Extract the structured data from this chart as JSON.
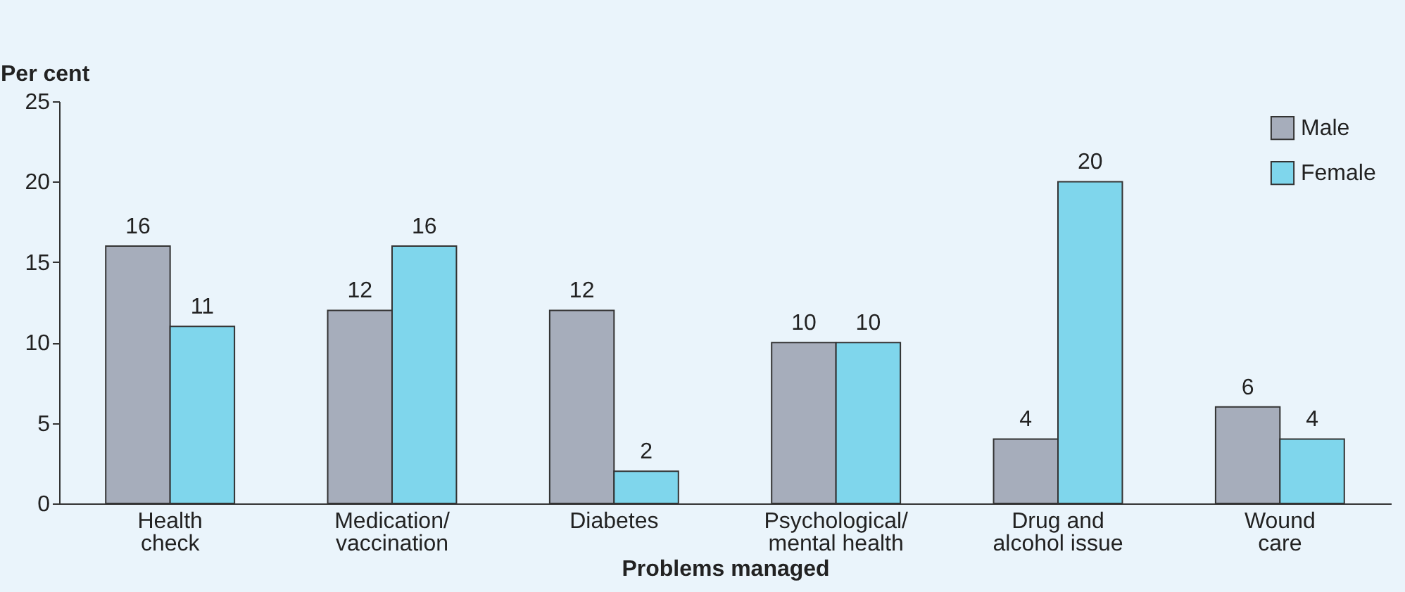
{
  "chart_data": {
    "type": "bar",
    "xlabel": "Problems managed",
    "ylabel": "Per cent",
    "categories": [
      "Health\ncheck",
      "Medication/\nvaccination",
      "Diabetes",
      "Psychological/\nmental health",
      "Drug and\nalcohol issue",
      "Wound\ncare"
    ],
    "series": [
      {
        "name": "Male",
        "color": "#a6adbb",
        "values": [
          16,
          12,
          12,
          10,
          4,
          6
        ]
      },
      {
        "name": "Female",
        "color": "#7fd6ec",
        "values": [
          11,
          16,
          2,
          10,
          20,
          4
        ]
      }
    ],
    "ylim": [
      0,
      25
    ],
    "yticks": [
      0,
      5,
      10,
      15,
      20,
      25
    ],
    "grid": false,
    "legend": "top right",
    "data_labels": true
  }
}
